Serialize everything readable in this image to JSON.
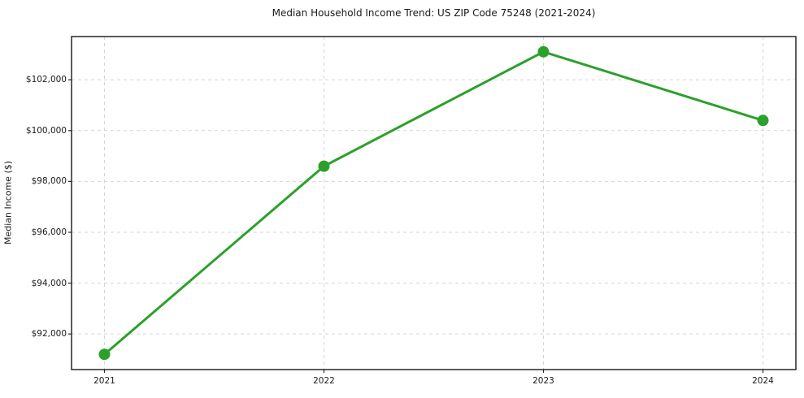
{
  "chart_data": {
    "type": "line",
    "title": "Median Household Income Trend: US ZIP Code 75248 (2021-2024)",
    "xlabel": "",
    "ylabel": "Median Income ($)",
    "x": [
      2021,
      2022,
      2023,
      2024
    ],
    "series": [
      {
        "name": "Median Household Income",
        "values": [
          91200,
          98600,
          103100,
          100400
        ]
      }
    ],
    "xticks": {
      "values": [
        2021,
        2022,
        2023,
        2024
      ],
      "labels": [
        "2021",
        "2022",
        "2023",
        "2024"
      ]
    },
    "yticks": {
      "values": [
        92000,
        94000,
        96000,
        98000,
        100000,
        102000
      ],
      "labels": [
        "$92,000",
        "$94,000",
        "$96,000",
        "$98,000",
        "$100,000",
        "$102,000"
      ]
    },
    "xlim": [
      2020.85,
      2024.15
    ],
    "ylim": [
      90600,
      103700
    ],
    "grid": true,
    "grid_style": "dashed",
    "legend": "none",
    "marker": "circle",
    "line_width": 3,
    "marker_radius": 7,
    "colors": {
      "line": "#2ca02c",
      "marker": "#2ca02c",
      "grid": "#d5d5d5",
      "axis": "#262626",
      "text": "#1a1a1a"
    }
  }
}
